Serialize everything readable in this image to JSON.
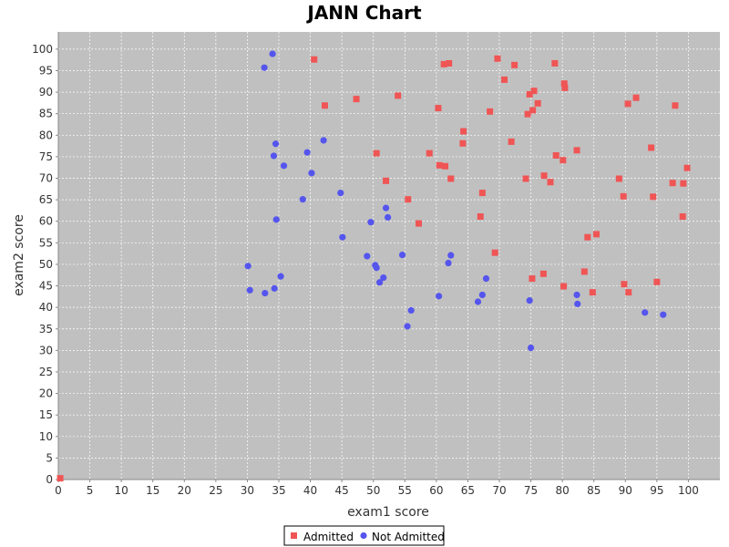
{
  "chart_data": {
    "type": "scatter",
    "title": "JANN Chart",
    "xlabel": "exam1 score",
    "ylabel": "exam2 score",
    "xlim": [
      0,
      105
    ],
    "ylim": [
      0,
      104
    ],
    "x_ticks": [
      0,
      5,
      10,
      15,
      20,
      25,
      30,
      35,
      40,
      45,
      50,
      55,
      60,
      65,
      70,
      75,
      80,
      85,
      90,
      95,
      100
    ],
    "y_ticks": [
      0,
      5,
      10,
      15,
      20,
      25,
      30,
      35,
      40,
      45,
      50,
      55,
      60,
      65,
      70,
      75,
      80,
      85,
      90,
      95,
      100
    ],
    "grid": true,
    "legend_position": "bottom-center",
    "colors": {
      "plot_background": "#c0c0c0",
      "grid": "#ffffff",
      "admitted": "#f05555",
      "not_admitted": "#5555ee"
    },
    "series": [
      {
        "name": "Admitted",
        "marker": "square",
        "color": "#f05555",
        "points": [
          [
            0.3,
            0.3
          ],
          [
            40.6,
            97.6
          ],
          [
            42.3,
            86.9
          ],
          [
            47.3,
            88.4
          ],
          [
            53.9,
            89.2
          ],
          [
            60.3,
            86.3
          ],
          [
            61.2,
            96.5
          ],
          [
            62.0,
            96.7
          ],
          [
            69.7,
            97.8
          ],
          [
            70.8,
            92.9
          ],
          [
            72.4,
            96.3
          ],
          [
            78.8,
            96.7
          ],
          [
            80.3,
            92.0
          ],
          [
            80.4,
            91.0
          ],
          [
            74.8,
            89.5
          ],
          [
            75.5,
            90.3
          ],
          [
            76.1,
            87.4
          ],
          [
            75.3,
            85.8
          ],
          [
            74.5,
            84.9
          ],
          [
            68.5,
            85.5
          ],
          [
            64.3,
            80.9
          ],
          [
            64.2,
            78.1
          ],
          [
            71.9,
            78.5
          ],
          [
            82.3,
            76.5
          ],
          [
            79.0,
            75.3
          ],
          [
            80.1,
            74.2
          ],
          [
            91.7,
            88.7
          ],
          [
            90.4,
            87.3
          ],
          [
            97.9,
            86.9
          ],
          [
            94.1,
            77.1
          ],
          [
            99.8,
            72.4
          ],
          [
            89.0,
            69.9
          ],
          [
            97.5,
            68.9
          ],
          [
            99.2,
            68.8
          ],
          [
            94.4,
            65.7
          ],
          [
            89.7,
            65.8
          ],
          [
            99.1,
            61.1
          ],
          [
            77.1,
            70.6
          ],
          [
            78.1,
            69.1
          ],
          [
            74.2,
            69.9
          ],
          [
            50.5,
            75.8
          ],
          [
            58.9,
            75.8
          ],
          [
            60.5,
            73.0
          ],
          [
            61.4,
            72.8
          ],
          [
            62.3,
            69.9
          ],
          [
            52.0,
            69.4
          ],
          [
            67.3,
            66.6
          ],
          [
            55.5,
            65.1
          ],
          [
            67.0,
            61.1
          ],
          [
            57.2,
            59.5
          ],
          [
            84.0,
            56.3
          ],
          [
            85.4,
            57.0
          ],
          [
            69.3,
            52.7
          ],
          [
            83.5,
            48.3
          ],
          [
            77.0,
            47.8
          ],
          [
            75.2,
            46.7
          ],
          [
            80.2,
            44.9
          ],
          [
            84.8,
            43.5
          ],
          [
            89.8,
            45.4
          ],
          [
            90.5,
            43.5
          ],
          [
            95.0,
            45.9
          ]
        ]
      },
      {
        "name": "Not Admitted",
        "marker": "circle",
        "color": "#5555ee",
        "points": [
          [
            34.0,
            98.9
          ],
          [
            32.7,
            95.7
          ],
          [
            34.5,
            78.0
          ],
          [
            34.2,
            75.2
          ],
          [
            35.8,
            72.9
          ],
          [
            39.5,
            76.0
          ],
          [
            42.1,
            78.8
          ],
          [
            40.2,
            71.2
          ],
          [
            38.8,
            65.1
          ],
          [
            44.8,
            66.6
          ],
          [
            34.6,
            60.4
          ],
          [
            49.6,
            59.8
          ],
          [
            52.0,
            63.1
          ],
          [
            52.3,
            60.9
          ],
          [
            45.1,
            56.3
          ],
          [
            49.0,
            51.9
          ],
          [
            54.6,
            52.2
          ],
          [
            30.1,
            49.6
          ],
          [
            30.4,
            44.0
          ],
          [
            32.8,
            43.3
          ],
          [
            34.3,
            44.4
          ],
          [
            35.3,
            47.2
          ],
          [
            50.3,
            49.8
          ],
          [
            50.5,
            49.2
          ],
          [
            51.6,
            46.9
          ],
          [
            51.0,
            45.8
          ],
          [
            62.3,
            52.1
          ],
          [
            61.9,
            50.3
          ],
          [
            60.4,
            42.6
          ],
          [
            56.0,
            39.3
          ],
          [
            55.4,
            35.6
          ],
          [
            67.9,
            46.7
          ],
          [
            67.3,
            42.9
          ],
          [
            66.6,
            41.3
          ],
          [
            74.8,
            41.6
          ],
          [
            75.0,
            30.6
          ],
          [
            82.3,
            42.9
          ],
          [
            82.4,
            40.8
          ],
          [
            93.1,
            38.8
          ],
          [
            96.0,
            38.3
          ]
        ]
      }
    ]
  }
}
